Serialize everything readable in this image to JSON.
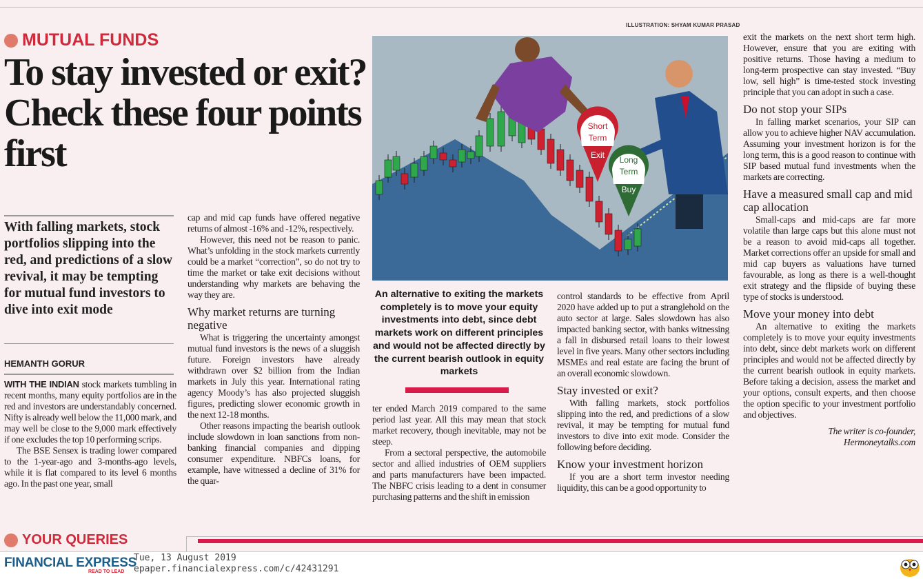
{
  "credit": "ILLUSTRATION: SHYAM KUMAR PRASAD",
  "section": "MUTUAL FUNDS",
  "headline": "To stay invested or exit? Check these four points first",
  "deck": "With falling markets, stock portfolios slipping into the red, and predictions of a slow revival, it may be tempting for mutual fund investors to dive into exit mode",
  "byline": "HEMANTH GORUR",
  "col1": {
    "lead": "WITH THE INDIAN",
    "p1": " stock markets tumbling in recent months, many equity portfolios are in the red and investors are understandably concerned. Nifty is already well below the 11,000 mark, and may well be close to the 9,000 mark effectively if one excludes the top 10 performing scrips.",
    "p2": "The BSE Sensex is trading lower compared to the 1-year-ago and 3-months-ago levels, while it is flat compared to its level 6 months ago. In the past one year, small"
  },
  "col2": {
    "p1": "cap and mid cap funds have offered negative returns of almost -16% and -12%, respectively.",
    "p2": "However, this need not be reason to panic. What’s unfolding in the stock markets currently could be a market “correction”, so do not try to time the market or take exit decisions without understanding why markets are behaving the way they are.",
    "h1": "Why market returns are turning negative",
    "p3": "What is triggering the uncertainty amongst mutual fund investors is the news of a sluggish future. Foreign investors have already withdrawn over $2 billion from the Indian markets in July this year. International rating agency Moody’s has also projected sluggish figures, predicting slower economic growth in the next 12-18 months.",
    "p4": "Other reasons impacting the bearish outlook include slowdown in loan sanctions from non-banking financial companies and dipping consumer expenditure. NBFCs loans, for example, have witnessed a decline of 31% for the quar-"
  },
  "quote": "An alternative to exiting the markets completely is to move your equity investments into debt, since debt markets work on different principles and would not be affected directly by the current bearish outlook in equity markets",
  "col3": {
    "p1": "ter ended March 2019 compared to the same period last year. All this may mean that stock market recovery, though inevitable, may not be steep.",
    "p2": "From a sectoral perspective, the automobile sector and allied industries of OEM suppliers and parts manufacturers have been impacted. The NBFC crisis leading to a dent in consumer purchasing patterns and the shift in emission"
  },
  "col4": {
    "p1": "control standards to be effective from April 2020 have added up to put a stranglehold on the auto sector at large. Sales slowdown has also impacted banking sector, with banks witnessing a fall in disbursed retail loans to their lowest level in five years. Many other sectors including MSMEs and real estate are facing the brunt of an overall economic slowdown.",
    "h1": "Stay invested or exit?",
    "p2": "With falling markets, stock portfolios slipping into the red, and predictions of a slow revival, it may be tempting for mutual fund investors to dive into exit mode. Consider the following before deciding.",
    "h2": "Know your investment horizon",
    "p3": "If you are a short term investor needing liquidity, this can be a good opportunity to"
  },
  "col5": {
    "p1": "exit the markets on the next short term high. However, ensure that you are exiting with positive returns. Those having a medium to long-term prospective can stay invested. “Buy low, sell high” is time-tested stock investing principle that you can adopt in such a case.",
    "h1": "Do not stop your SIPs",
    "p2": "In falling market scenarios, your SIP can allow you to achieve higher NAV accumulation. Assuming your investment horizon is for the long term, this is a good reason to continue with SIP based mutual fund investments when the markets are correcting.",
    "h2": "Have a measured small cap and mid cap allocation",
    "p3": "Small-caps and mid-caps are far more volatile than large caps but this alone must not be a reason to avoid mid-caps all together. Market corrections offer an upside for small and mid cap buyers as valuations have turned favourable, as long as there is a well-thought exit strategy and the flipside of buying these type of stocks is understood.",
    "h3": "Move your money into debt",
    "p4": "An alternative to exiting the markets completely is to move your equity investments into debt, since debt markets work on different principles and would not be affected directly by the current bearish outlook in equity markets. Before taking a decision, assess the market and your options, consult experts, and then choose the option specific to your investment portfolio and objectives.",
    "sign1": "The writer is co-founder,",
    "sign2": "Hermoneytalks.com"
  },
  "illustration": {
    "pin_short": [
      "Short",
      "Term",
      "Exit"
    ],
    "pin_long": [
      "Long",
      "Term",
      "Buy"
    ]
  },
  "queries": "YOUR QUERIES",
  "footer": {
    "brand": "FINANCIAL EXPRESS",
    "tagline": "READ TO LEAD",
    "date": "Tue, 13 August 2019",
    "url": "epaper.financialexpress.com/c/42431291"
  },
  "colors": {
    "accent": "#d02a3a",
    "bar": "#d81b4a",
    "brand": "#1c5d8a"
  }
}
